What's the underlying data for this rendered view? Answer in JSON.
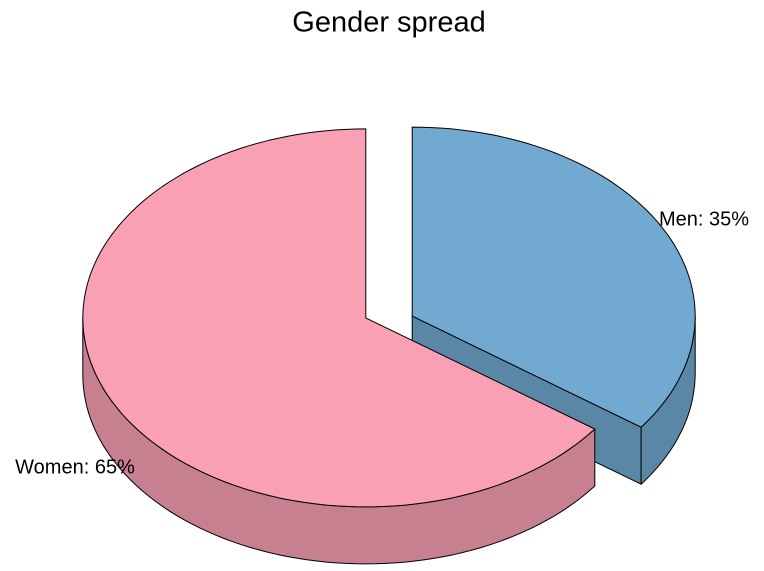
{
  "chart_data": {
    "type": "pie",
    "title": "Gender spread",
    "categories": [
      "Men",
      "Women"
    ],
    "values": [
      35,
      65
    ],
    "value_labels": [
      "Men: 35%",
      "Women: 65%"
    ],
    "colors": [
      "#72a9d0",
      "#f9a0b4"
    ]
  }
}
